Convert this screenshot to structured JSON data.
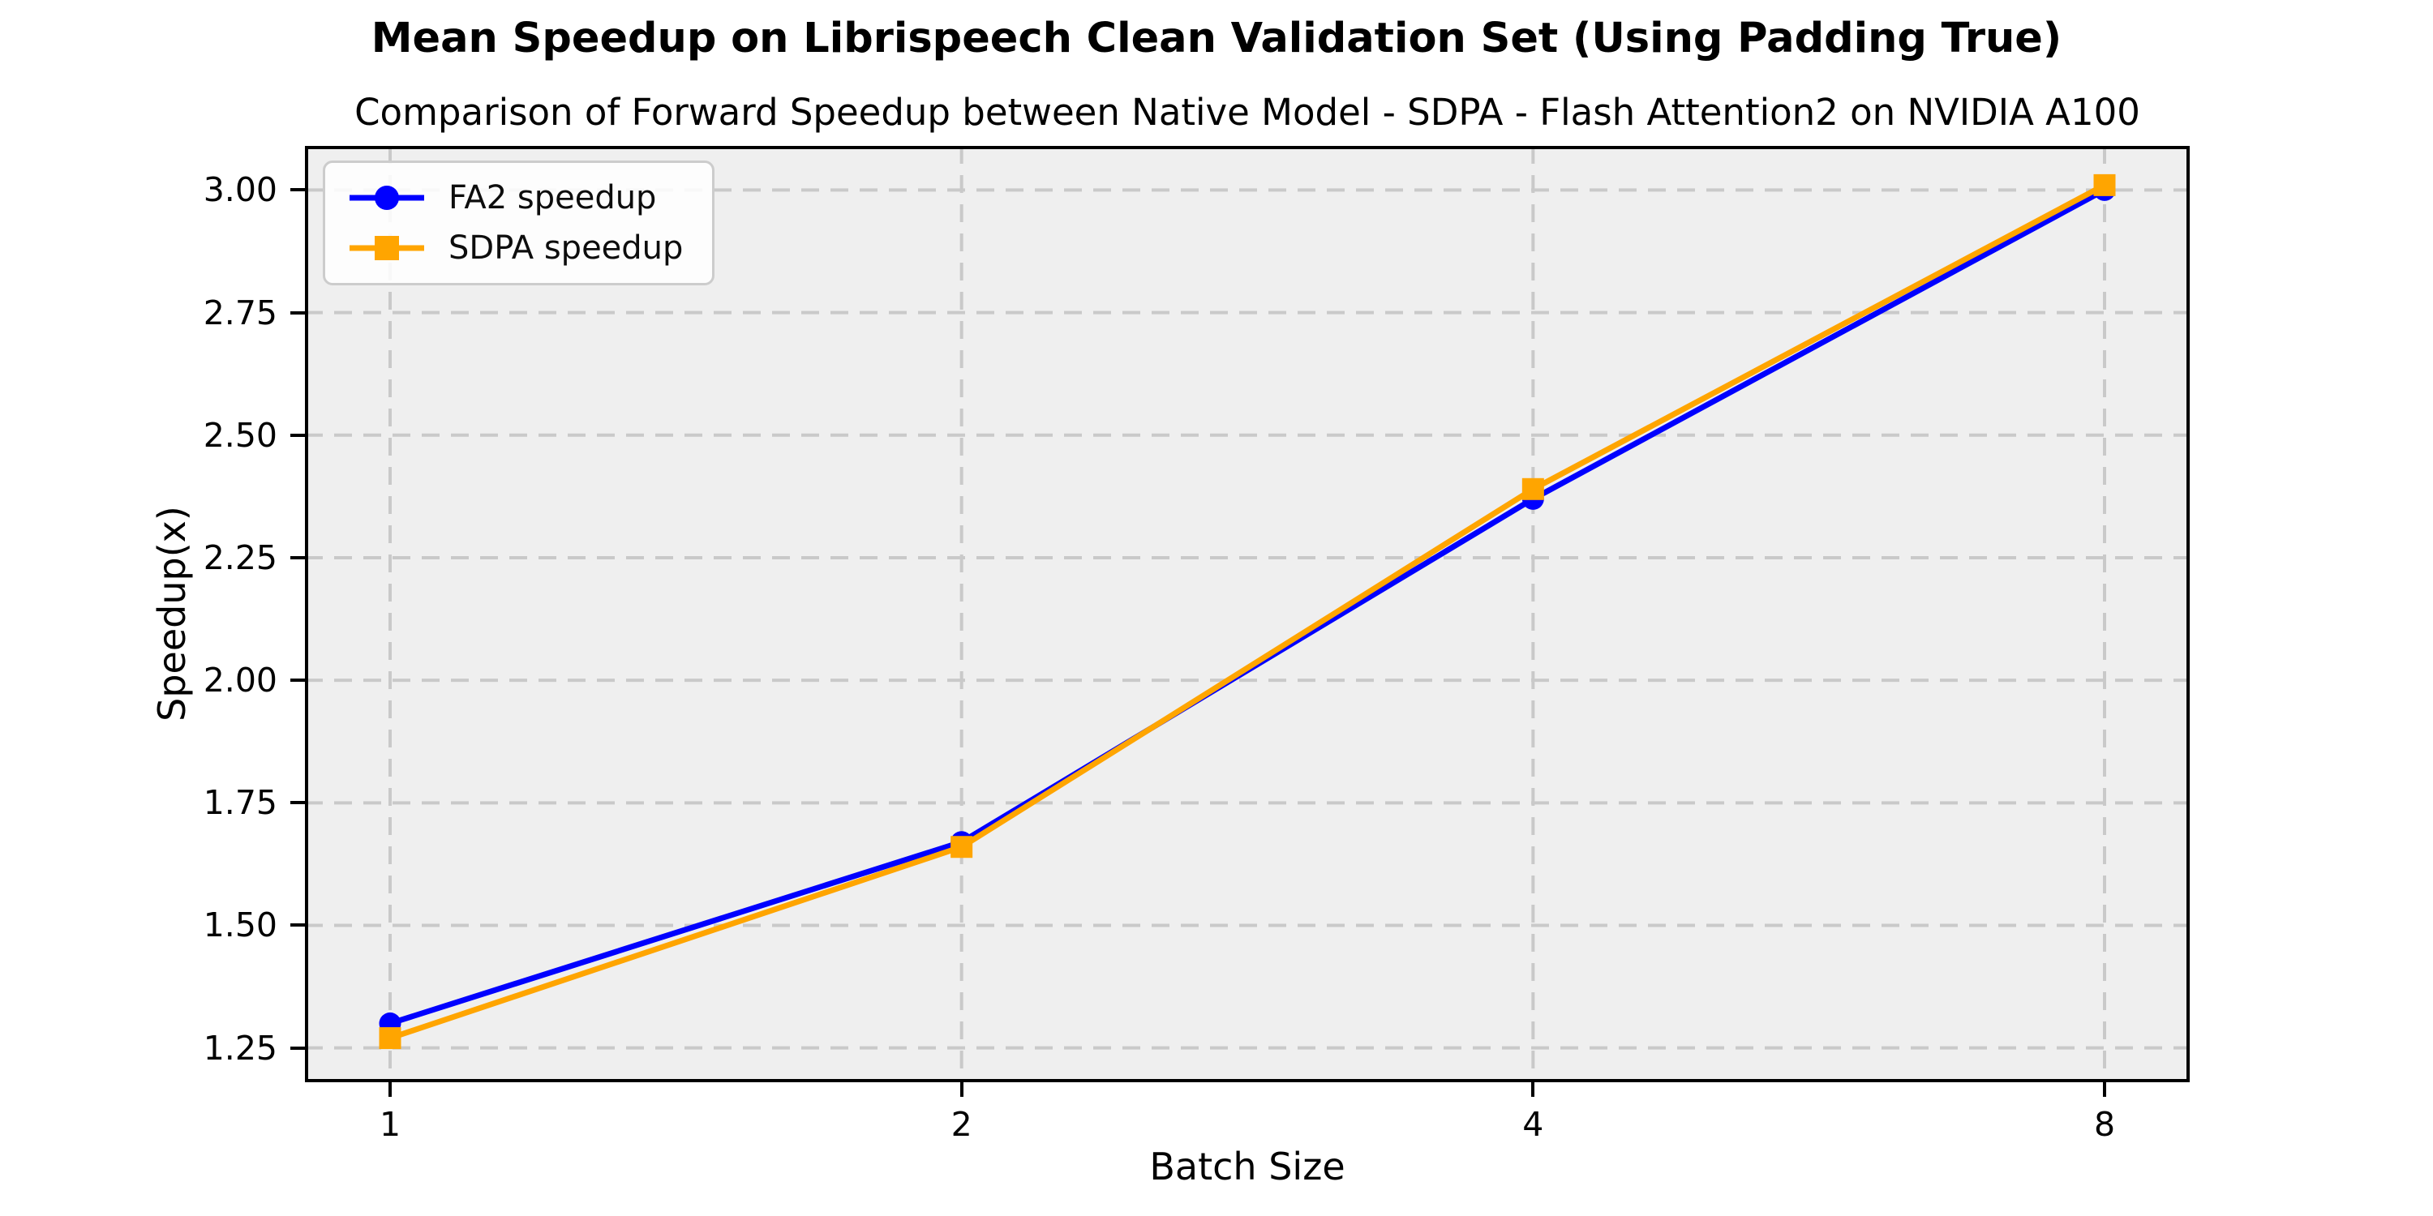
{
  "figure": {
    "title": "Mean Speedup on Librispeech Clean Validation Set (Using Padding True)",
    "subtitle": "Comparison of Forward Speedup between Native Model - SDPA - Flash Attention2 on NVIDIA A100"
  },
  "chart_data": {
    "type": "line",
    "title": "Mean Speedup on Librispeech Clean Validation Set (Using Padding True)",
    "subtitle": "Comparison of Forward Speedup between Native Model - SDPA - Flash Attention2 on NVIDIA A100",
    "xlabel": "Batch Size",
    "ylabel": "Speedup(x)",
    "x_scale": "log2 (categories equally spaced)",
    "categories": [
      "1",
      "2",
      "4",
      "8"
    ],
    "series": [
      {
        "name": "FA2 speedup",
        "color": "#0000ff",
        "marker": "circle",
        "values": [
          1.3,
          1.67,
          2.37,
          3.0
        ]
      },
      {
        "name": "SDPA speedup",
        "color": "#ffa500",
        "marker": "square",
        "values": [
          1.27,
          1.66,
          2.39,
          3.01
        ]
      }
    ],
    "yticks": [
      1.25,
      1.5,
      1.75,
      2.0,
      2.25,
      2.5,
      2.75,
      3.0
    ],
    "ylim": [
      1.18,
      3.09
    ],
    "grid": true,
    "grid_style": "dashed",
    "legend_position": "upper left",
    "colors": {
      "plot_background": "#efefef",
      "grid": "#c9c9c9",
      "spine": "#000000",
      "text": "#000000",
      "legend_border": "#cccccc"
    }
  }
}
